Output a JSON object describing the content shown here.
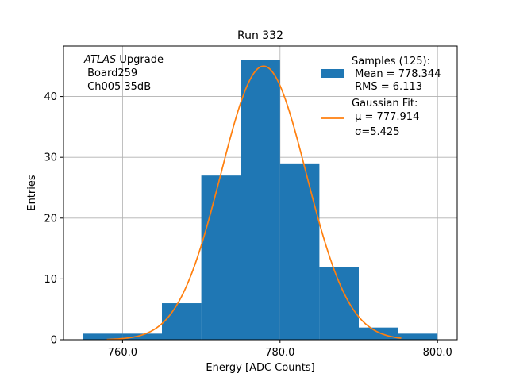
{
  "chart_data": {
    "type": "bar",
    "title": "Run 332",
    "xlabel": "Energy [ADC Counts]",
    "ylabel": "Entries",
    "xlim": [
      752.5,
      802.5
    ],
    "ylim": [
      0,
      48.3
    ],
    "xticks": [
      760,
      780,
      800
    ],
    "xtick_labels": [
      "760.0",
      "780.0",
      "800.0"
    ],
    "yticks": [
      0,
      10,
      20,
      30,
      40
    ],
    "ytick_labels": [
      "0",
      "10",
      "20",
      "30",
      "40"
    ],
    "grid": true,
    "legend_position": "top-right",
    "annotation": {
      "italic": "ATLAS",
      "rest": " Upgrade",
      "line2": " Board259",
      "line3": " Ch005 35dB"
    },
    "histogram": {
      "name": "Samples (125):",
      "stats_line1": " Mean = 778.344",
      "stats_line2": " RMS = 6.113",
      "color": "#1f77b4",
      "bin_edges": [
        755,
        760,
        765,
        770,
        775,
        780,
        785,
        790,
        795,
        800
      ],
      "counts": [
        1,
        1,
        6,
        27,
        46,
        29,
        12,
        2,
        1
      ]
    },
    "fit": {
      "name": "Gaussian Fit:",
      "mu_label": " μ = 777.914",
      "sigma_label": " σ=5.425",
      "color": "#ff7f0e",
      "mu": 777.914,
      "sigma": 5.425,
      "peak": 45.0,
      "x_range": [
        758,
        795.4
      ]
    }
  }
}
